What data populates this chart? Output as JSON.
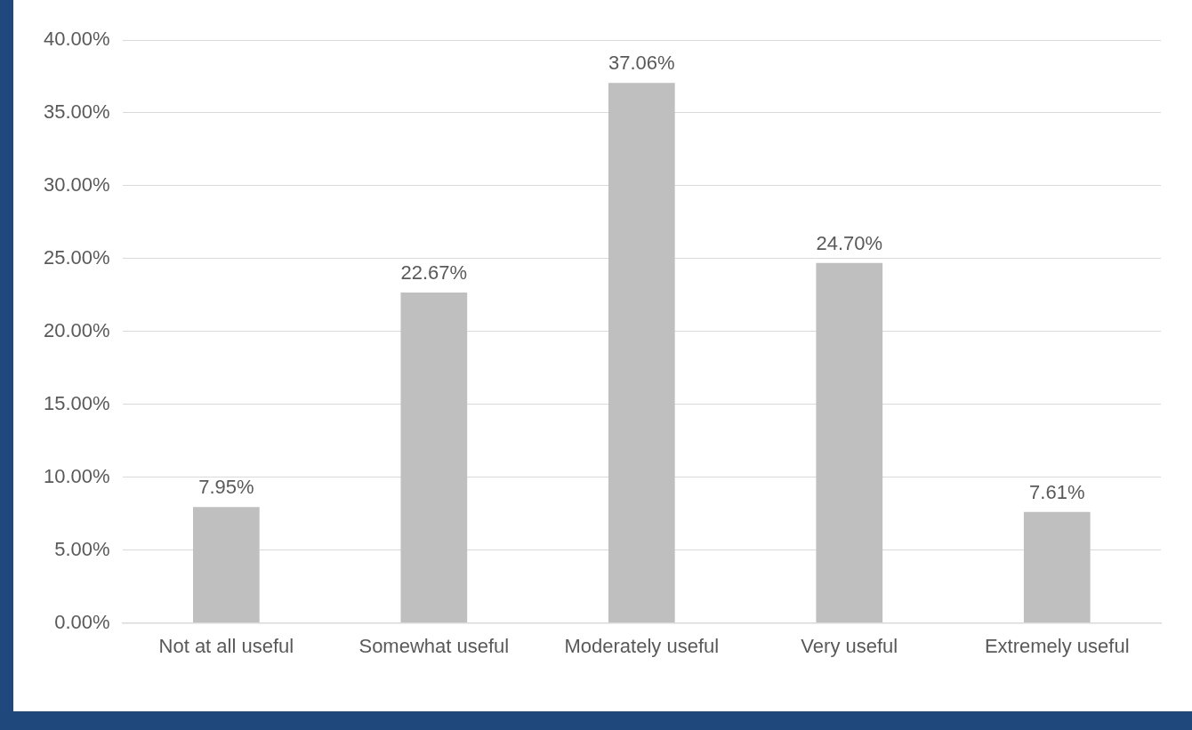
{
  "chart_data": {
    "type": "bar",
    "categories": [
      "Not at all useful",
      "Somewhat useful",
      "Moderately useful",
      "Very useful",
      "Extremely useful"
    ],
    "values": [
      7.95,
      22.67,
      37.06,
      24.7,
      7.61
    ],
    "value_labels": [
      "7.95%",
      "22.67%",
      "37.06%",
      "24.70%",
      "7.61%"
    ],
    "color": "#bfbfbf",
    "ylim": [
      0,
      40
    ],
    "yticks": [
      {
        "value": 0,
        "label": "0.00%"
      },
      {
        "value": 5,
        "label": "5.00%"
      },
      {
        "value": 10,
        "label": "10.00%"
      },
      {
        "value": 15,
        "label": "15.00%"
      },
      {
        "value": 20,
        "label": "20.00%"
      },
      {
        "value": 25,
        "label": "25.00%"
      },
      {
        "value": 30,
        "label": "30.00%"
      },
      {
        "value": 35,
        "label": "35.00%"
      },
      {
        "value": 40,
        "label": "40.00%"
      }
    ],
    "grid": "y",
    "legend": false
  }
}
